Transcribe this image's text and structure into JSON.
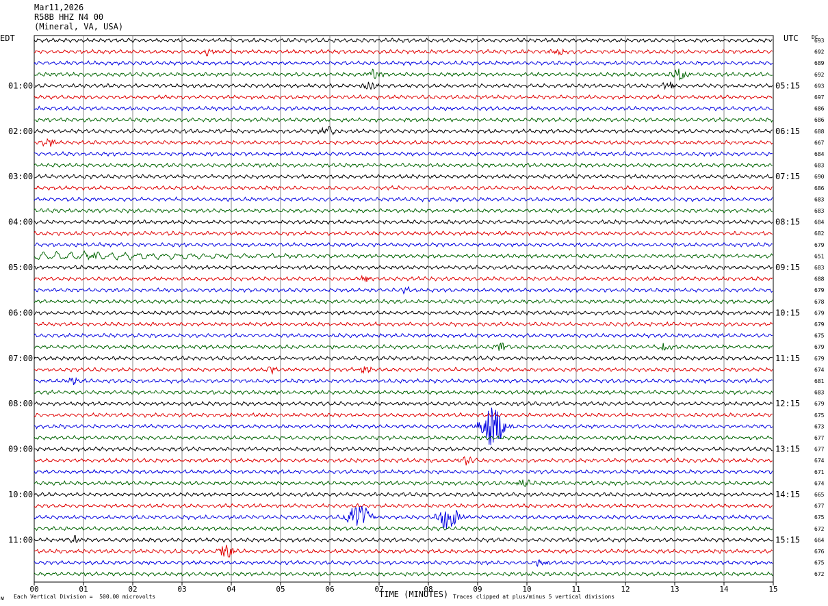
{
  "header": {
    "date": "Mar11,2026",
    "station": "R58B HHZ N4 00",
    "location": "(Mineral, VA, USA)"
  },
  "labels": {
    "left_tz": "EDT",
    "right_tz": "UTC",
    "dc": "DC",
    "xlabel": "TIME (MINUTES)",
    "scale_note": "Each Vertical Division =  500.00 microvolts",
    "clip_note": "Traces clipped at plus/minus 5 vertical divisions",
    "corner_mark": "ᴍ"
  },
  "chart_data": {
    "type": "line",
    "title": "R58B HHZ N4 00",
    "xlabel": "TIME (MINUTES)",
    "x_ticks": [
      "00",
      "01",
      "02",
      "03",
      "04",
      "05",
      "06",
      "07",
      "08",
      "09",
      "10",
      "11",
      "12",
      "13",
      "14",
      "15"
    ],
    "xlim": [
      0,
      15
    ],
    "grid": true,
    "left_time_labels": [
      {
        "row": 4,
        "label": "01:00"
      },
      {
        "row": 8,
        "label": "02:00"
      },
      {
        "row": 12,
        "label": "03:00"
      },
      {
        "row": 16,
        "label": "04:00"
      },
      {
        "row": 20,
        "label": "05:00"
      },
      {
        "row": 24,
        "label": "06:00"
      },
      {
        "row": 28,
        "label": "07:00"
      },
      {
        "row": 32,
        "label": "08:00"
      },
      {
        "row": 36,
        "label": "09:00"
      },
      {
        "row": 40,
        "label": "10:00"
      },
      {
        "row": 44,
        "label": "11:00"
      }
    ],
    "right_time_labels": [
      {
        "row": 4,
        "label": "05:15"
      },
      {
        "row": 8,
        "label": "06:15"
      },
      {
        "row": 12,
        "label": "07:15"
      },
      {
        "row": 16,
        "label": "08:15"
      },
      {
        "row": 20,
        "label": "09:15"
      },
      {
        "row": 24,
        "label": "10:15"
      },
      {
        "row": 28,
        "label": "11:15"
      },
      {
        "row": 32,
        "label": "12:15"
      },
      {
        "row": 36,
        "label": "13:15"
      },
      {
        "row": 40,
        "label": "14:15"
      },
      {
        "row": 44,
        "label": "15:15"
      }
    ],
    "dc_offsets": [
      "693",
      "692",
      "689",
      "692",
      "693",
      "697",
      "686",
      "686",
      "688",
      "667",
      "684",
      "683",
      "690",
      "686",
      "683",
      "683",
      "684",
      "682",
      "679",
      "651",
      "683",
      "688",
      "679",
      "678",
      "679",
      "679",
      "675",
      "679",
      "679",
      "674",
      "681",
      "683",
      "679",
      "675",
      "673",
      "677",
      "677",
      "674",
      "671",
      "674",
      "665",
      "677",
      "675",
      "672",
      "664",
      "676",
      "675",
      "672"
    ],
    "trace_colors": [
      "#000000",
      "#e00000",
      "#0000e0",
      "#006400"
    ],
    "events": [
      {
        "row": 1,
        "minute": 3.5,
        "amp": 0.5
      },
      {
        "row": 1,
        "minute": 10.6,
        "amp": 0.5
      },
      {
        "row": 3,
        "minute": 6.9,
        "amp": 0.9
      },
      {
        "row": 3,
        "minute": 13.1,
        "amp": 1.2
      },
      {
        "row": 4,
        "minute": 6.8,
        "amp": 0.8
      },
      {
        "row": 4,
        "minute": 12.9,
        "amp": 0.6
      },
      {
        "row": 8,
        "minute": 6.0,
        "amp": 0.8
      },
      {
        "row": 9,
        "minute": 0.3,
        "amp": 0.6
      },
      {
        "row": 19,
        "minute": 1.2,
        "amp": 0.6
      },
      {
        "row": 21,
        "minute": 6.7,
        "amp": 0.5
      },
      {
        "row": 22,
        "minute": 7.5,
        "amp": 0.5
      },
      {
        "row": 27,
        "minute": 9.5,
        "amp": 0.6
      },
      {
        "row": 27,
        "minute": 12.8,
        "amp": 0.6
      },
      {
        "row": 29,
        "minute": 4.8,
        "amp": 0.5
      },
      {
        "row": 29,
        "minute": 6.7,
        "amp": 0.5
      },
      {
        "row": 30,
        "minute": 0.8,
        "amp": 0.5
      },
      {
        "row": 34,
        "minute": 9.3,
        "amp": 3.5
      },
      {
        "row": 37,
        "minute": 8.8,
        "amp": 0.6
      },
      {
        "row": 39,
        "minute": 9.9,
        "amp": 0.6
      },
      {
        "row": 42,
        "minute": 6.6,
        "amp": 2.3
      },
      {
        "row": 42,
        "minute": 8.4,
        "amp": 2.0
      },
      {
        "row": 44,
        "minute": 0.8,
        "amp": 0.6
      },
      {
        "row": 45,
        "minute": 3.9,
        "amp": 1.3
      },
      {
        "row": 46,
        "minute": 10.3,
        "amp": 0.6
      }
    ]
  }
}
